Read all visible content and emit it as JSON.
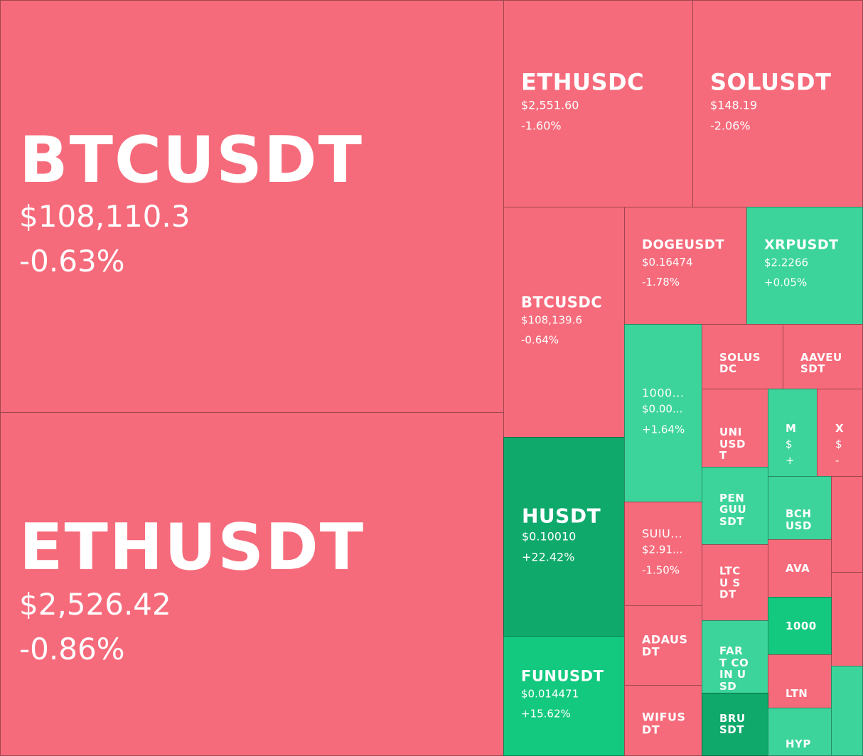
{
  "tiles": {
    "btcusdt": {
      "symbol": "BTCUSDT",
      "price": "$108,110.3",
      "change": "-0.63%"
    },
    "ethusdt": {
      "symbol": "ETHUSDT",
      "price": "$2,526.42",
      "change": "-0.86%"
    },
    "ethusdc": {
      "symbol": "ETHUSDC",
      "price": "$2,551.60",
      "change": "-1.60%"
    },
    "solusdt": {
      "symbol": "SOLUSDT",
      "price": "$148.19",
      "change": "-2.06%"
    },
    "btcusdc": {
      "symbol": "BTCUSDC",
      "price": "$108,139.6",
      "change": "-0.64%"
    },
    "dogeusdt": {
      "symbol": "DOGEUSDT",
      "price": "$0.16474",
      "change": "-1.78%"
    },
    "xrpusdt": {
      "symbol": "XRPUSDT",
      "price": "$2.2266",
      "change": "+0.05%"
    },
    "husdt": {
      "symbol": "HUSDT",
      "price": "$0.10010",
      "change": "+22.42%"
    },
    "funusdt": {
      "symbol": "FUNUSDT",
      "price": "$0.014471",
      "change": "+15.62%"
    },
    "t1000": {
      "symbol": "1000...",
      "price": "$0.00...",
      "change": "+1.64%"
    },
    "suiusdt": {
      "symbol": "SUIU...",
      "price": "$2.91...",
      "change": "-1.50%"
    },
    "solusdc": {
      "symbol": "SOLUS DC"
    },
    "aaveusdt": {
      "symbol": "AAVEU SDT"
    },
    "uniusdt": {
      "symbol": "UNI USD T"
    },
    "m_tile": {
      "symbol": "M",
      "price": "$",
      "change": "+"
    },
    "x_tile": {
      "symbol": "X",
      "price": "$",
      "change": "-"
    },
    "pengu": {
      "symbol": "PEN GUU SDT"
    },
    "bchusd": {
      "symbol": "BCH USD"
    },
    "ltcusdt": {
      "symbol": "LTCU SDT"
    },
    "ava": {
      "symbol": "AVA"
    },
    "adausdt": {
      "symbol": "ADAUS DT"
    },
    "fartcoin": {
      "symbol": "FART COIN USD"
    },
    "t1000b": {
      "symbol": "1000"
    },
    "ltn": {
      "symbol": "LTN"
    },
    "wifusdt": {
      "symbol": "WIFUS DT"
    },
    "bru": {
      "symbol": "BRU SDT"
    },
    "hyp": {
      "symbol": "HYP"
    }
  },
  "colors": {
    "down": "#f66b7b",
    "up": "#3cd49b",
    "up_strong": "#0fa96c",
    "up_bright": "#13c97f"
  }
}
